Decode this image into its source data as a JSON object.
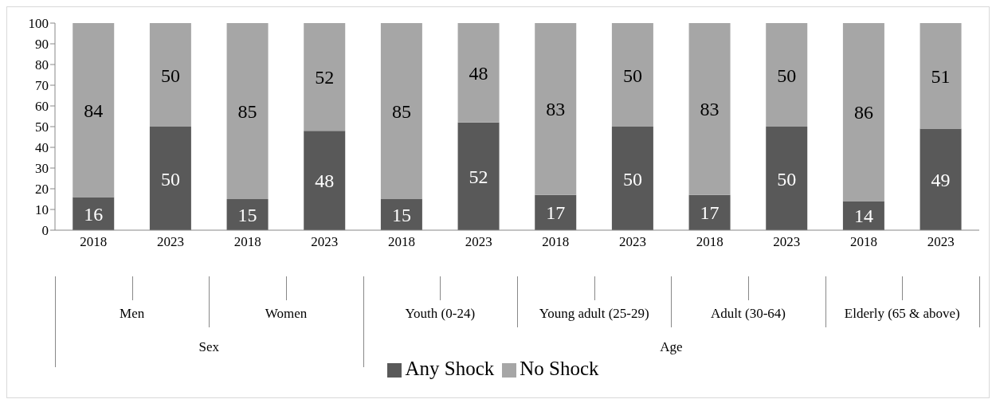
{
  "chart_data": {
    "type": "bar",
    "stacked": true,
    "categories": [
      "2018",
      "2023",
      "2018",
      "2023",
      "2018",
      "2023",
      "2018",
      "2023",
      "2018",
      "2023",
      "2018",
      "2023"
    ],
    "series": [
      {
        "name": "Any Shock",
        "color": "#595959",
        "values": [
          16,
          50,
          15,
          48,
          15,
          52,
          17,
          50,
          17,
          50,
          14,
          49
        ]
      },
      {
        "name": "No Shock",
        "color": "#a6a6a6",
        "values": [
          84,
          50,
          85,
          52,
          85,
          48,
          83,
          50,
          83,
          50,
          86,
          51
        ]
      }
    ],
    "ylim": [
      0,
      100
    ],
    "yticks": [
      0,
      10,
      20,
      30,
      40,
      50,
      60,
      70,
      80,
      90,
      100
    ],
    "data_labels": true,
    "legend": "bottom",
    "annotations": [
      "Men",
      "Women",
      "Youth (0-24)",
      "Young adult (25-29)",
      "Adult (30-64)",
      "Elderly (65 & above)",
      "Sex",
      "Age"
    ]
  }
}
